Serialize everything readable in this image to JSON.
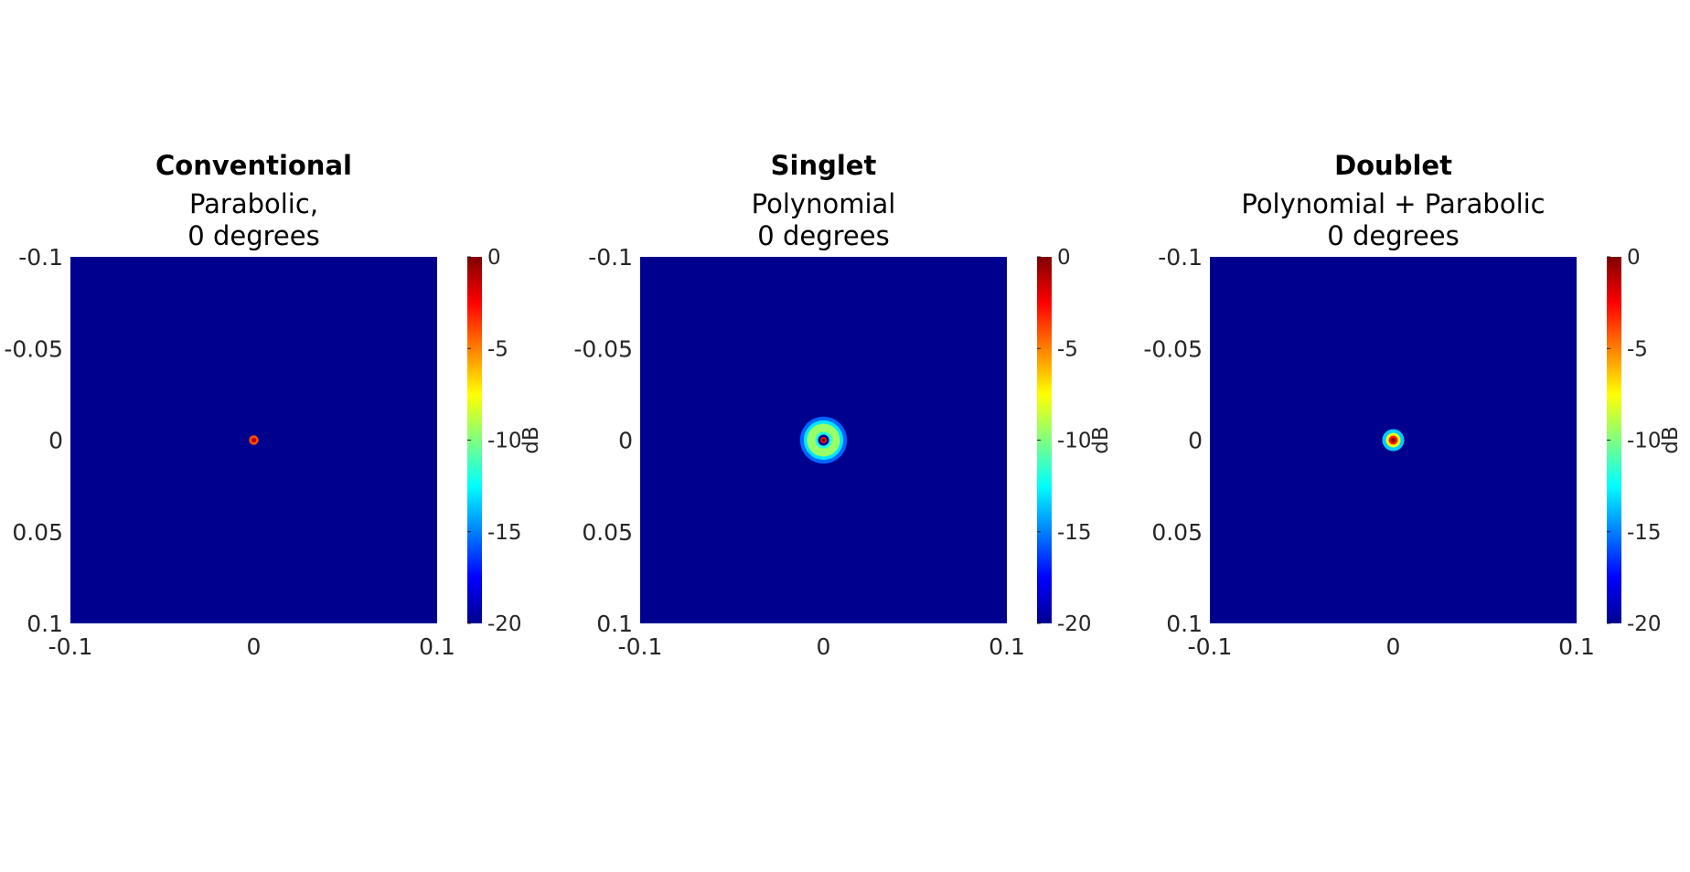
{
  "chart_data": [
    {
      "type": "heatmap",
      "title": "Conventional",
      "subtitle_lines": [
        "Parabolic,",
        "0 degrees"
      ],
      "xlim": [
        -0.1,
        0.1
      ],
      "ylim": [
        -0.1,
        0.1
      ],
      "y_reversed": true,
      "x_ticks": [
        "-0.1",
        "0",
        "0.1"
      ],
      "x_tick_values": [
        -0.1,
        0,
        0.1
      ],
      "y_ticks": [
        "-0.1",
        "-0.05",
        "0",
        "0.05",
        "0.1"
      ],
      "y_tick_values": [
        -0.1,
        -0.05,
        0,
        0.05,
        0.1
      ],
      "colorbar": {
        "label": "dB",
        "range": [
          -20,
          0
        ],
        "ticks": [
          "0",
          "-5",
          "-10",
          "-15",
          "-20"
        ],
        "tick_values": [
          0,
          -5,
          -10,
          -15,
          -20
        ],
        "colormap": "jet"
      },
      "background_db": -20,
      "spot_center": [
        0,
        0
      ],
      "rings": [
        {
          "radius": 0.0026,
          "db": -4
        },
        {
          "radius": 0.0013,
          "db": -1
        }
      ]
    },
    {
      "type": "heatmap",
      "title": "Singlet",
      "subtitle_lines": [
        "Polynomial",
        "0 degrees"
      ],
      "xlim": [
        -0.1,
        0.1
      ],
      "ylim": [
        -0.1,
        0.1
      ],
      "y_reversed": true,
      "x_ticks": [
        "-0.1",
        "0",
        "0.1"
      ],
      "x_tick_values": [
        -0.1,
        0,
        0.1
      ],
      "y_ticks": [
        "-0.1",
        "-0.05",
        "0",
        "0.05",
        "0.1"
      ],
      "y_tick_values": [
        -0.1,
        -0.05,
        0,
        0.05,
        0.1
      ],
      "colorbar": {
        "label": "dB",
        "range": [
          -20,
          0
        ],
        "ticks": [
          "0",
          "-5",
          "-10",
          "-15",
          "-20"
        ],
        "tick_values": [
          0,
          -5,
          -10,
          -15,
          -20
        ],
        "colormap": "jet"
      },
      "background_db": -20,
      "spot_center": [
        0,
        0
      ],
      "rings": [
        {
          "radius": 0.0128,
          "db": -15.5
        },
        {
          "radius": 0.0108,
          "db": -13
        },
        {
          "radius": 0.009,
          "db": -9.5
        },
        {
          "radius": 0.0045,
          "db": -12
        },
        {
          "radius": 0.003,
          "db": -20
        },
        {
          "radius": 0.0017,
          "db": -3
        },
        {
          "radius": 0.0009,
          "db": 0
        }
      ]
    },
    {
      "type": "heatmap",
      "title": "Doublet",
      "subtitle_lines": [
        "Polynomial + Parabolic",
        "0 degrees"
      ],
      "xlim": [
        -0.1,
        0.1
      ],
      "ylim": [
        -0.1,
        0.1
      ],
      "y_reversed": true,
      "x_ticks": [
        "-0.1",
        "0",
        "0.1"
      ],
      "x_tick_values": [
        -0.1,
        0,
        0.1
      ],
      "y_ticks": [
        "-0.1",
        "-0.05",
        "0",
        "0.05",
        "0.1"
      ],
      "y_tick_values": [
        -0.1,
        -0.05,
        0,
        0.05,
        0.1
      ],
      "colorbar": {
        "label": "dB",
        "range": [
          -20,
          0
        ],
        "ticks": [
          "0",
          "-5",
          "-10",
          "-15",
          "-20"
        ],
        "tick_values": [
          0,
          -5,
          -10,
          -15,
          -20
        ],
        "colormap": "jet"
      },
      "background_db": -20,
      "spot_center": [
        0,
        0
      ],
      "rings": [
        {
          "radius": 0.006,
          "db": -13.5
        },
        {
          "radius": 0.004,
          "db": -8
        },
        {
          "radius": 0.0025,
          "db": -3
        },
        {
          "radius": 0.0012,
          "db": 0
        }
      ]
    }
  ]
}
